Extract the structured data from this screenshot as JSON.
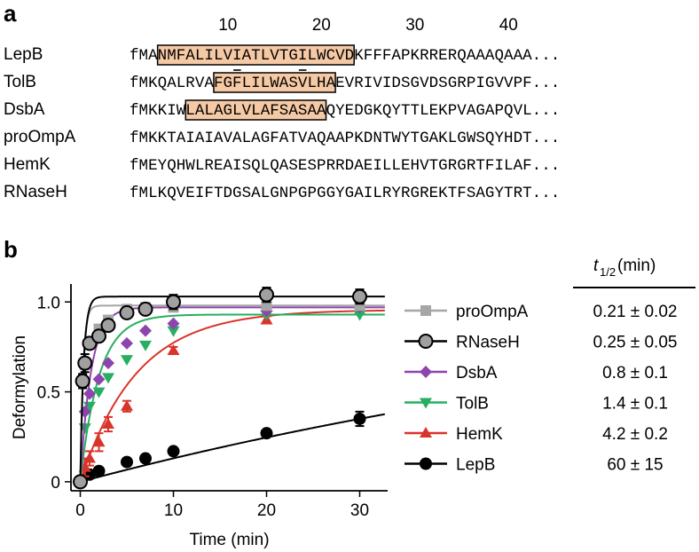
{
  "panel_a": {
    "label": "a",
    "ruler": [
      "10",
      "20",
      "30",
      "40"
    ],
    "sequences": [
      {
        "name": "LepB",
        "seq": "fMANMFALILVIATLVTGILWCVDKFFFAPKRRERQAAAQAAA...",
        "box": [
          3,
          24
        ],
        "underline": [
          11,
          18
        ]
      },
      {
        "name": "TolB",
        "seq": "fMKQALRVAFGFLILWASVLHAEVRIVIDSGVDSGRPIGVVPF...",
        "box": [
          9,
          22
        ]
      },
      {
        "name": "DsbA",
        "seq": "fMKKIWLALAGLVLAFSASAAQYEDGKQYTTLEKPVAGAPQVL...",
        "box": [
          6,
          21
        ]
      },
      {
        "name": "proOmpA",
        "seq": "fMKKTAIAIAVALAGFATVAQAAPKDNTWYTGAKLGWSQYHDT..."
      },
      {
        "name": "HemK",
        "seq": "fMEYQHWLREAISQLQASESPRRDAEILLEHVTGRGRTFILAF..."
      },
      {
        "name": "RNaseH",
        "seq": "fMLKQVEIFTDGSALGNPGPGGYGAILRYRGREKTFSAGYTRT..."
      }
    ],
    "box_fill": "#f6c9a5"
  },
  "panel_b": {
    "label": "b",
    "thalf_header": "t1/2 (min)",
    "thalf_sym": "t",
    "thalf_sub": "1/2",
    "thalf_unit": " (min)"
  },
  "chart_data": {
    "type": "scatter",
    "xlabel": "Time (min)",
    "ylabel": "Deformylation",
    "xlim": [
      -1,
      33
    ],
    "ylim": [
      -0.05,
      1.1
    ],
    "xticks": [
      "0",
      "10",
      "20",
      "30"
    ],
    "yticks": [
      "0",
      "0.5",
      "1.0"
    ],
    "series": [
      {
        "name": "proOmpA",
        "color": "#a6a6a6",
        "marker": "square",
        "t_half": "0.21 ± 0.02",
        "x": [
          0,
          0.5,
          1,
          2,
          3,
          5,
          7,
          10,
          20,
          30
        ],
        "y": [
          0,
          0.65,
          0.78,
          0.85,
          0.9,
          0.96,
          0.97,
          0.97,
          0.98,
          0.98
        ]
      },
      {
        "name": "RNaseH",
        "color": "#000000",
        "marker": "open-circle",
        "t_half": "0.25 ± 0.05",
        "x": [
          0,
          0.25,
          0.5,
          1,
          2,
          3,
          5,
          7,
          10,
          20,
          30
        ],
        "y": [
          0,
          0.56,
          0.66,
          0.77,
          0.81,
          0.87,
          0.94,
          0.96,
          1.0,
          1.04,
          1.03
        ],
        "err": [
          0,
          0.04,
          0.05,
          0.03,
          0.03,
          0.02,
          0.02,
          0.02,
          0.04,
          0.04,
          0.04
        ]
      },
      {
        "name": "DsbA",
        "color": "#8e44ad",
        "marker": "diamond",
        "t_half": "0.8 ± 0.1",
        "x": [
          0,
          0.5,
          1,
          2,
          3,
          5,
          7,
          10,
          20,
          30
        ],
        "y": [
          0,
          0.39,
          0.49,
          0.57,
          0.66,
          0.77,
          0.84,
          0.88,
          0.95,
          0.97
        ]
      },
      {
        "name": "TolB",
        "color": "#27ae60",
        "marker": "triangle-down",
        "t_half": "1.4 ± 0.1",
        "x": [
          0,
          0.5,
          1,
          2,
          3,
          5,
          7,
          10,
          20,
          30
        ],
        "y": [
          0,
          0.3,
          0.42,
          0.5,
          0.58,
          0.68,
          0.76,
          0.84,
          0.93,
          0.93
        ]
      },
      {
        "name": "HemK",
        "color": "#d9342b",
        "marker": "triangle-up",
        "t_half": "4.2 ± 0.2",
        "x": [
          0,
          0.5,
          1,
          2,
          3,
          5,
          10,
          20,
          30
        ],
        "y": [
          0,
          0.08,
          0.13,
          0.22,
          0.32,
          0.42,
          0.73,
          0.9,
          0.95
        ],
        "err": [
          0,
          0.05,
          0.04,
          0.05,
          0.04,
          0.03,
          0.02,
          0.02,
          0.02
        ]
      },
      {
        "name": "LepB",
        "color": "#000000",
        "marker": "filled-circle",
        "t_half": "60 ± 15",
        "x": [
          0,
          1,
          2,
          5,
          7,
          10,
          20,
          30
        ],
        "y": [
          0,
          0.04,
          0.06,
          0.11,
          0.13,
          0.17,
          0.27,
          0.35
        ],
        "err": [
          0,
          0.01,
          0.01,
          0.01,
          0.01,
          0.01,
          0.01,
          0.04
        ]
      }
    ]
  }
}
